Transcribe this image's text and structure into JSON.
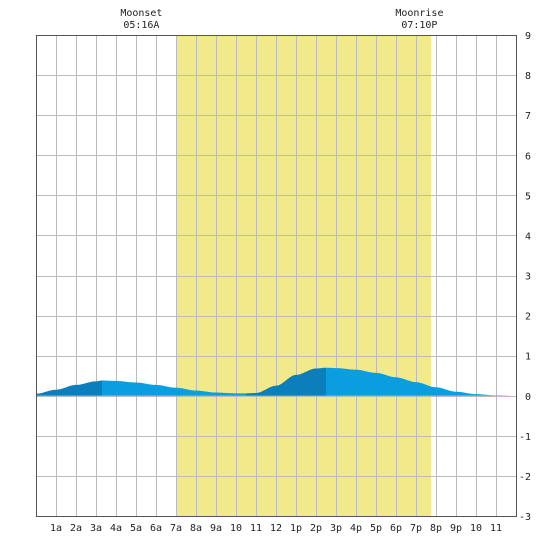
{
  "chart_data": {
    "type": "area",
    "title": "",
    "xlabel": "",
    "ylabel": "",
    "xlim": [
      0,
      24
    ],
    "ylim": [
      -3,
      9
    ],
    "grid": true,
    "x_ticks": [
      {
        "x": 1,
        "label": "1a"
      },
      {
        "x": 2,
        "label": "2a"
      },
      {
        "x": 3,
        "label": "3a"
      },
      {
        "x": 4,
        "label": "4a"
      },
      {
        "x": 5,
        "label": "5a"
      },
      {
        "x": 6,
        "label": "6a"
      },
      {
        "x": 7,
        "label": "7a"
      },
      {
        "x": 8,
        "label": "8a"
      },
      {
        "x": 9,
        "label": "9a"
      },
      {
        "x": 10,
        "label": "10"
      },
      {
        "x": 11,
        "label": "11"
      },
      {
        "x": 12,
        "label": "12"
      },
      {
        "x": 13,
        "label": "1p"
      },
      {
        "x": 14,
        "label": "2p"
      },
      {
        "x": 15,
        "label": "3p"
      },
      {
        "x": 16,
        "label": "4p"
      },
      {
        "x": 17,
        "label": "5p"
      },
      {
        "x": 18,
        "label": "6p"
      },
      {
        "x": 19,
        "label": "7p"
      },
      {
        "x": 20,
        "label": "8p"
      },
      {
        "x": 21,
        "label": "9p"
      },
      {
        "x": 22,
        "label": "10"
      },
      {
        "x": 23,
        "label": "11"
      }
    ],
    "y_ticks": [
      9,
      8,
      7,
      6,
      5,
      4,
      3,
      2,
      1,
      0,
      -1,
      -2,
      -3
    ],
    "daylight": {
      "start": 7.0,
      "end": 19.75,
      "color": "#f2ea8a"
    },
    "annotations": [
      {
        "x": 5.27,
        "title": "Moonset",
        "time": "05:16A"
      },
      {
        "x": 19.17,
        "title": "Moonrise",
        "time": "07:10P"
      }
    ],
    "series": [
      {
        "x": [
          0,
          1,
          2,
          3,
          3.3,
          4,
          5,
          6,
          7,
          8,
          9,
          10,
          10.5,
          11,
          12,
          13,
          14,
          14.5,
          15,
          16,
          17,
          18,
          19,
          20,
          21,
          22,
          23,
          24
        ],
        "values": [
          0.05,
          0.15,
          0.27,
          0.36,
          0.38,
          0.37,
          0.33,
          0.27,
          0.2,
          0.13,
          0.08,
          0.06,
          0.06,
          0.07,
          0.25,
          0.52,
          0.68,
          0.7,
          0.69,
          0.65,
          0.57,
          0.46,
          0.34,
          0.21,
          0.1,
          0.04,
          0.01,
          0.0
        ]
      }
    ],
    "fill_colors": {
      "rising": "#0a7fbc",
      "falling": "#0b9ede"
    },
    "turning_points": [
      0,
      3.3,
      10.5,
      14.5,
      24
    ]
  }
}
